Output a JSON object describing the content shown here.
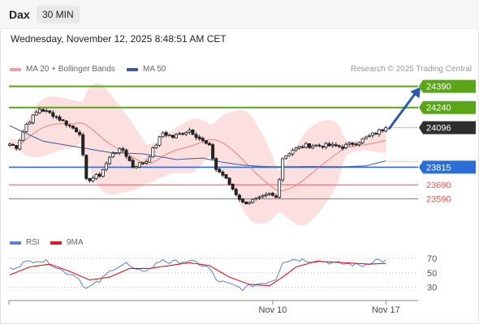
{
  "header": {
    "symbol": "Dax",
    "interval": "30 MIN"
  },
  "datetime": "Wednesday, November 12, 2025 8:48:51 AM CET",
  "copyright": "Research © 2025 Trading Central",
  "legend": {
    "ma20_label": "MA 20 + Bollinger Bands",
    "ma50_label": "MA 50",
    "rsi_label": "RSI",
    "rsi_ma_label": "9MA"
  },
  "colors": {
    "ma20": "#f08080",
    "ma50": "#3b5aa0",
    "bollinger_fill": "#fcd9d9",
    "target_green": "#5aa617",
    "current": "#2e2e2e",
    "pivot_blue": "#2b6fd6",
    "support_red": "#e55a5a",
    "arrow": "#2e5aa8",
    "rsi": "#5b7fd8",
    "rsi_ma": "#e0141b",
    "candle_up": "#1f1f1f",
    "candle_down": "#1f1f1f"
  },
  "chart_data": {
    "type": "candlestick",
    "ylim": [
      23460,
      24440
    ],
    "n_bars": 114,
    "x_labels": [
      {
        "label": "Nov 10",
        "bar": 79
      },
      {
        "label": "Nov 17",
        "bar": 113
      }
    ],
    "current_price": 24096,
    "levels": [
      {
        "value": 24390,
        "label": "24390",
        "kind": "resistance-2"
      },
      {
        "value": 24240,
        "label": "24240",
        "kind": "resistance-1"
      },
      {
        "value": 24096,
        "label": "24096",
        "kind": "last-price"
      },
      {
        "value": 23815,
        "label": "23815",
        "kind": "pivot"
      },
      {
        "value": 23690,
        "label": "23690",
        "kind": "support-1"
      },
      {
        "value": 23590,
        "label": "23590",
        "kind": "support-2"
      }
    ],
    "projection_arrow": {
      "from_bar": 114,
      "from_value": 24090,
      "to_bar": 121,
      "to_value": 24385
    },
    "close_anchors": [
      [
        0,
        23980
      ],
      [
        2,
        23960
      ],
      [
        5,
        24120
      ],
      [
        9,
        24230
      ],
      [
        13,
        24190
      ],
      [
        18,
        24110
      ],
      [
        21,
        24060
      ],
      [
        23,
        23720
      ],
      [
        27,
        23760
      ],
      [
        31,
        23920
      ],
      [
        34,
        23940
      ],
      [
        37,
        23820
      ],
      [
        41,
        23860
      ],
      [
        44,
        23980
      ],
      [
        46,
        24060
      ],
      [
        49,
        24030
      ],
      [
        54,
        24080
      ],
      [
        57,
        24020
      ],
      [
        60,
        23960
      ],
      [
        62,
        23800
      ],
      [
        64,
        23760
      ],
      [
        67,
        23660
      ],
      [
        70,
        23560
      ],
      [
        75,
        23590
      ],
      [
        78,
        23620
      ],
      [
        80,
        23600
      ],
      [
        82,
        23880
      ],
      [
        85,
        23940
      ],
      [
        89,
        23970
      ],
      [
        95,
        23970
      ],
      [
        100,
        23960
      ],
      [
        105,
        24000
      ],
      [
        110,
        24060
      ],
      [
        113,
        24096
      ]
    ],
    "ma50_anchors": [
      [
        0,
        24110
      ],
      [
        10,
        24000
      ],
      [
        20,
        23960
      ],
      [
        30,
        23920
      ],
      [
        40,
        23910
      ],
      [
        50,
        23870
      ],
      [
        58,
        23880
      ],
      [
        64,
        23850
      ],
      [
        70,
        23830
      ],
      [
        76,
        23820
      ],
      [
        82,
        23818
      ],
      [
        90,
        23820
      ],
      [
        100,
        23818
      ],
      [
        107,
        23825
      ],
      [
        113,
        23860
      ]
    ],
    "rsi": {
      "levels": [
        70,
        50,
        30
      ],
      "ylim": [
        15,
        80
      ],
      "rsi_anchors": [
        [
          0,
          55
        ],
        [
          4,
          63
        ],
        [
          8,
          68
        ],
        [
          12,
          64
        ],
        [
          16,
          52
        ],
        [
          20,
          46
        ],
        [
          23,
          28
        ],
        [
          27,
          38
        ],
        [
          31,
          56
        ],
        [
          35,
          63
        ],
        [
          38,
          52
        ],
        [
          42,
          55
        ],
        [
          46,
          69
        ],
        [
          48,
          64
        ],
        [
          52,
          66
        ],
        [
          56,
          64
        ],
        [
          60,
          56
        ],
        [
          62,
          40
        ],
        [
          66,
          34
        ],
        [
          70,
          28
        ],
        [
          74,
          34
        ],
        [
          78,
          38
        ],
        [
          80,
          42
        ],
        [
          82,
          66
        ],
        [
          86,
          69
        ],
        [
          90,
          67
        ],
        [
          94,
          66
        ],
        [
          98,
          63
        ],
        [
          102,
          62
        ],
        [
          106,
          60
        ],
        [
          110,
          68
        ],
        [
          113,
          66
        ]
      ],
      "ma_anchors": [
        [
          0,
          47
        ],
        [
          6,
          58
        ],
        [
          12,
          62
        ],
        [
          18,
          52
        ],
        [
          24,
          40
        ],
        [
          30,
          44
        ],
        [
          36,
          56
        ],
        [
          42,
          56
        ],
        [
          48,
          60
        ],
        [
          54,
          64
        ],
        [
          60,
          60
        ],
        [
          66,
          44
        ],
        [
          72,
          34
        ],
        [
          78,
          32
        ],
        [
          82,
          44
        ],
        [
          86,
          58
        ],
        [
          92,
          66
        ],
        [
          100,
          64
        ],
        [
          108,
          62
        ],
        [
          113,
          63
        ]
      ]
    }
  }
}
